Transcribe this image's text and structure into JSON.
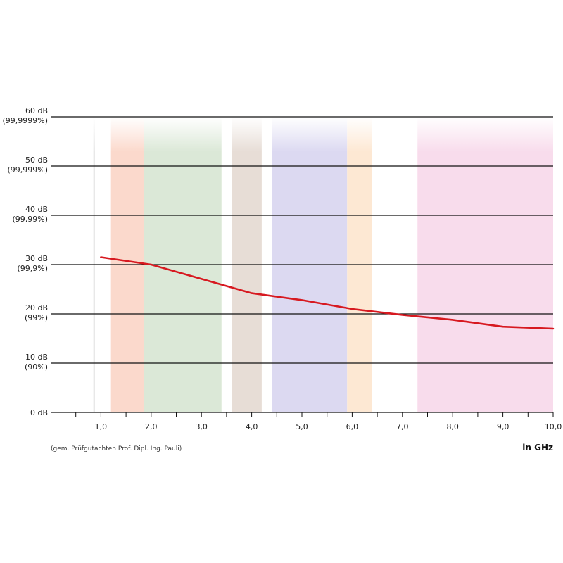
{
  "chart_data": {
    "type": "line",
    "xlim": [
      0,
      10
    ],
    "ylim": [
      0,
      60
    ],
    "x_ticks": [
      "1,0",
      "2,0",
      "3,0",
      "4,0",
      "5,0",
      "6,0",
      "7,0",
      "8,0",
      "9,0",
      "10,0"
    ],
    "x_tick_values": [
      1,
      2,
      3,
      4,
      5,
      6,
      7,
      8,
      9,
      10
    ],
    "y_ticks": [
      {
        "value": 60,
        "db": "60 dB",
        "pct": "(99,9999%)"
      },
      {
        "value": 50,
        "db": "50 dB",
        "pct": "(99,999%)"
      },
      {
        "value": 40,
        "db": "40 dB",
        "pct": "(99,99%)"
      },
      {
        "value": 30,
        "db": "30 dB",
        "pct": "(99,9%)"
      },
      {
        "value": 20,
        "db": "20 dB",
        "pct": "(99%)"
      },
      {
        "value": 10,
        "db": "10 dB",
        "pct": "(90%)"
      },
      {
        "value": 0,
        "db": "0 dB",
        "pct": ""
      }
    ],
    "grid": "horizontal",
    "series": [
      {
        "color": "#d71920",
        "x": [
          1.0,
          2.0,
          4.0,
          5.0,
          6.0,
          7.0,
          8.0,
          9.0,
          10.0
        ],
        "y": [
          31.5,
          30.0,
          24.2,
          22.8,
          21.0,
          19.8,
          18.8,
          17.4,
          17.0
        ]
      }
    ],
    "bands": [
      {
        "x": [
          0.85,
          0.88
        ],
        "color": "#e4e4e4"
      },
      {
        "x": [
          1.2,
          1.85
        ],
        "color": "#fbd9cc"
      },
      {
        "x": [
          1.85,
          3.4
        ],
        "color": "#dbe8d7"
      },
      {
        "x": [
          3.6,
          4.2
        ],
        "color": "#e7ddd6"
      },
      {
        "x": [
          4.4,
          5.9
        ],
        "color": "#dcd9f1"
      },
      {
        "x": [
          5.9,
          6.4
        ],
        "color": "#fde8d3"
      },
      {
        "x": [
          7.3,
          10.0
        ],
        "color": "#f8dcec"
      }
    ],
    "xlabel": "in GHz",
    "footnote": "(gem. Prüfgutachten Prof. Dipl. Ing. Pauli)"
  }
}
